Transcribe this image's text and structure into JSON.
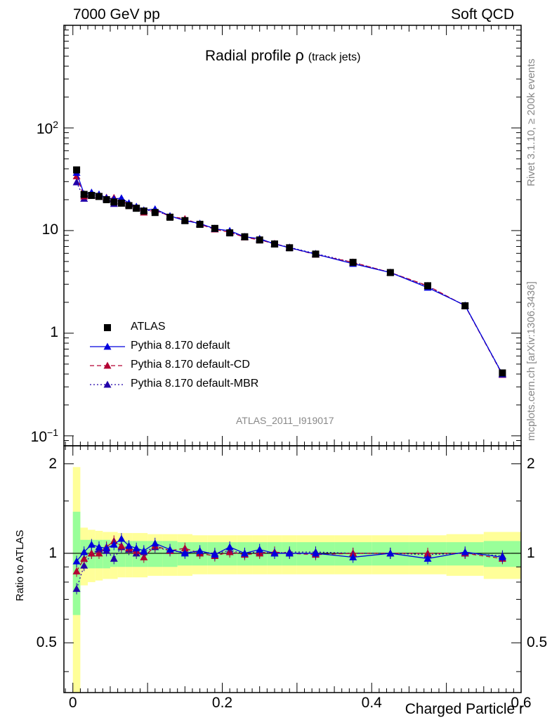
{
  "header": {
    "left": "7000 GeV pp",
    "right": "Soft QCD"
  },
  "side_labels": {
    "top": "Rivet 3.1.10, ≥ 200k events",
    "bottom": "mcplots.cern.ch [arXiv:1306.3436]"
  },
  "chart_data": {
    "type": "scatter",
    "title": "Radial profile",
    "title_symbol": "ρ",
    "title_suffix": "(track jets)",
    "analysis_label": "ATLAS_2011_I919017",
    "xlabel": "Charged Particle r",
    "ylabel_ratio": "Ratio to ATLAS",
    "xlim": [
      -0.012,
      0.6
    ],
    "ylim_main": [
      0.08,
      1000
    ],
    "y_scale_main": "log",
    "ylim_ratio": [
      0.34,
      2.3
    ],
    "y_scale_ratio": "log",
    "x_ticks": [
      {
        "v": 0,
        "label": "0"
      },
      {
        "v": 0.2,
        "label": "0.2"
      },
      {
        "v": 0.4,
        "label": "0.4"
      },
      {
        "v": 0.6,
        "label": "0.6"
      }
    ],
    "y_ticks_main": [
      {
        "v": 0.1,
        "base": "10",
        "exp": "−1"
      },
      {
        "v": 1,
        "base": "1",
        "exp": ""
      },
      {
        "v": 10,
        "base": "10",
        "exp": ""
      },
      {
        "v": 100,
        "base": "10",
        "exp": "2"
      }
    ],
    "y_ticks_ratio": [
      {
        "v": 0.5,
        "label": "0.5"
      },
      {
        "v": 1,
        "label": "1"
      },
      {
        "v": 2,
        "label": "2"
      }
    ],
    "x": [
      0.005,
      0.015,
      0.025,
      0.035,
      0.045,
      0.055,
      0.065,
      0.075,
      0.085,
      0.095,
      0.11,
      0.13,
      0.15,
      0.17,
      0.19,
      0.21,
      0.23,
      0.25,
      0.27,
      0.29,
      0.325,
      0.375,
      0.425,
      0.475,
      0.525,
      0.575
    ],
    "bin_edges": [
      0,
      0.01,
      0.02,
      0.03,
      0.04,
      0.05,
      0.06,
      0.07,
      0.08,
      0.09,
      0.1,
      0.12,
      0.14,
      0.16,
      0.18,
      0.2,
      0.22,
      0.24,
      0.26,
      0.28,
      0.3,
      0.35,
      0.4,
      0.45,
      0.5,
      0.55,
      0.6
    ],
    "legend_position": "lower-left",
    "series": [
      {
        "name": "ATLAS",
        "marker": "square",
        "color": "#000000",
        "values": [
          39,
          22.5,
          22,
          21.5,
          20,
          19,
          18.5,
          17.5,
          16.5,
          15.5,
          15,
          13.5,
          12.5,
          11.5,
          10.5,
          9.5,
          8.7,
          8.1,
          7.4,
          6.8,
          5.9,
          4.9,
          3.9,
          2.9,
          1.85,
          0.41
        ],
        "band_inner": [
          0.38,
          0.11,
          0.11,
          0.11,
          0.11,
          0.1,
          0.1,
          0.1,
          0.1,
          0.1,
          0.1,
          0.1,
          0.09,
          0.09,
          0.09,
          0.09,
          0.09,
          0.09,
          0.09,
          0.09,
          0.09,
          0.09,
          0.09,
          0.09,
          0.09,
          0.1
        ],
        "band_outer": [
          0.95,
          0.22,
          0.2,
          0.19,
          0.18,
          0.18,
          0.17,
          0.17,
          0.17,
          0.17,
          0.16,
          0.16,
          0.16,
          0.15,
          0.15,
          0.15,
          0.15,
          0.15,
          0.15,
          0.15,
          0.15,
          0.15,
          0.15,
          0.15,
          0.16,
          0.18
        ]
      },
      {
        "name": "Pythia 8.170 default",
        "marker": "triangle",
        "line": "solid",
        "color": "#0000dd",
        "ratio": [
          0.94,
          1.01,
          1.07,
          1.05,
          1.04,
          1.07,
          1.12,
          1.06,
          1.04,
          1.02,
          1.08,
          1.03,
          1.0,
          1.02,
          0.99,
          1.05,
          1.0,
          1.03,
          1.0,
          1.0,
          1.0,
          0.97,
          1.0,
          0.96,
          1.01,
          0.97
        ]
      },
      {
        "name": "Pythia 8.170 default-CD",
        "marker": "triangle",
        "line": "dashed",
        "color": "#b30033",
        "ratio": [
          0.87,
          0.96,
          1.0,
          1.0,
          1.05,
          1.1,
          1.06,
          1.04,
          1.02,
          0.97,
          1.06,
          1.02,
          1.04,
          1.0,
          0.98,
          1.01,
          0.99,
          1.0,
          1.01,
          1.0,
          0.99,
          1.0,
          1.0,
          1.0,
          1.0,
          0.96
        ]
      },
      {
        "name": "Pythia 8.170 default-MBR",
        "marker": "triangle",
        "line": "dotted",
        "color": "#2200aa",
        "ratio": [
          0.76,
          0.91,
          1.0,
          1.03,
          1.02,
          0.96,
          1.05,
          1.03,
          1.0,
          1.01,
          1.05,
          1.02,
          1.01,
          1.01,
          1.0,
          1.02,
          1.0,
          1.01,
          1.0,
          1.01,
          1.01,
          1.0,
          1.0,
          0.99,
          1.0,
          0.98
        ]
      }
    ]
  }
}
